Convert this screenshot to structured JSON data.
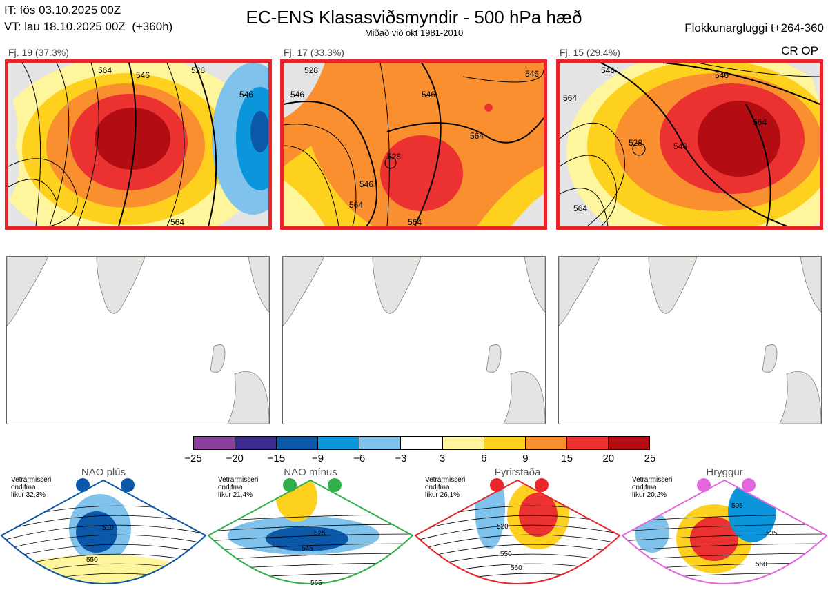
{
  "header": {
    "it_line": "IT: fös 03.10.2025 00Z",
    "vt_line": "VT: lau 18.10.2025 00Z  (+360h)",
    "title": "EC-ENS Klasasviðsmyndir - 500 hPa hæð",
    "subtitle": "Miðað við okt 1981-2010",
    "window": "Flokkunargluggi t+264-360",
    "cr_op": "CR OP"
  },
  "chart_data": {
    "type": "heatmap",
    "title": "EC-ENS Klasasviðsmyndir - 500 hPa hæð",
    "subtitle": "Miðað við okt 1981-2010",
    "clusters": [
      {
        "label": "Fj. 19 (37.3%)",
        "members": 19,
        "percent": 37.3,
        "contour_labels": [
          "546",
          "528",
          "564",
          "546",
          "564"
        ]
      },
      {
        "label": "Fj. 17 (33.3%)",
        "members": 17,
        "percent": 33.3,
        "contour_labels": [
          "546",
          "528",
          "546",
          "564",
          "528",
          "546",
          "564",
          "546",
          "564"
        ]
      },
      {
        "label": "Fj. 15 (29.4%)",
        "members": 15,
        "percent": 29.4,
        "contour_labels": [
          "546",
          "564",
          "546",
          "564",
          "528",
          "546",
          "564"
        ]
      }
    ],
    "colorbar": {
      "ticks": [
        "−25",
        "−20",
        "−15",
        "−9",
        "−6",
        "−3",
        "3",
        "6",
        "9",
        "15",
        "20",
        "25"
      ],
      "colors": [
        "#8a3f9d",
        "#3d2a91",
        "#0b58a8",
        "#0b96db",
        "#7fc2ec",
        "#ffffff",
        "#fff59c",
        "#fed11e",
        "#fa8f30",
        "#ec3131",
        "#b30c13"
      ]
    },
    "regimes": [
      {
        "name": "NAO plús",
        "season": "Vetrarmisseri",
        "period": "ondjfma",
        "likelihood": "líkur 32,3%",
        "color": "#0b58a8",
        "contour_labels": [
          "510",
          "550"
        ]
      },
      {
        "name": "NAO mínus",
        "season": "Vetrarmisseri",
        "period": "ondjfma",
        "likelihood": "líkur 21,4%",
        "color": "#2fb04a",
        "contour_labels": [
          "525",
          "545",
          "565"
        ]
      },
      {
        "name": "Fyrirstaða",
        "season": "Vetrarmisseri",
        "period": "ondjfma",
        "likelihood": "líkur 26,1%",
        "color": "#e8262b",
        "contour_labels": [
          "520",
          "550",
          "560"
        ]
      },
      {
        "name": "Hryggur",
        "season": "Vetrarmisseri",
        "period": "ondjfma",
        "likelihood": "líkur 20,2%",
        "color": "#e666e0",
        "contour_labels": [
          "505",
          "535",
          "560"
        ]
      }
    ]
  }
}
